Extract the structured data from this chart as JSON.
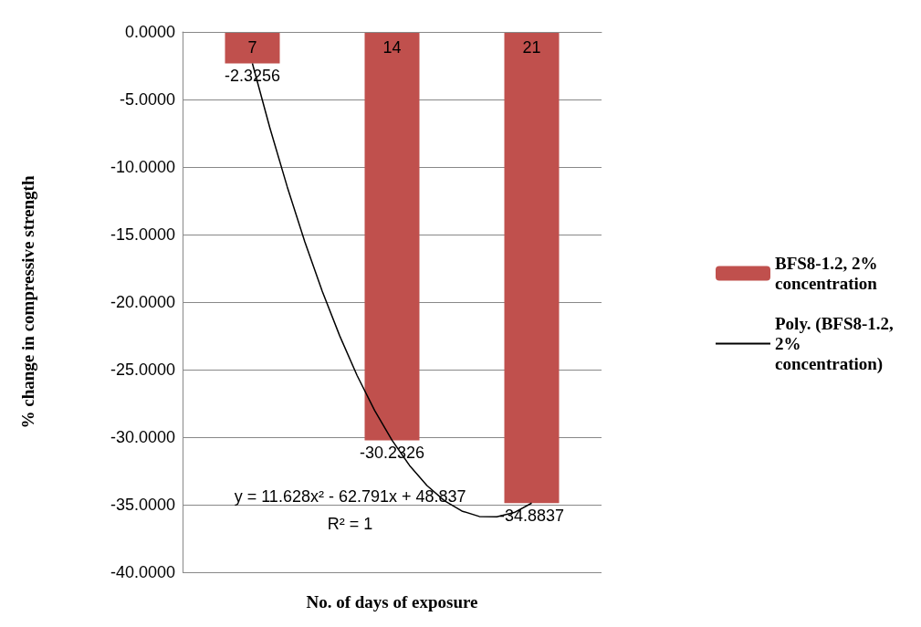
{
  "chart_data": {
    "type": "bar",
    "xlabel": "No. of days of exposure",
    "ylabel": "% change in compressive strength",
    "x": [
      7,
      14,
      21
    ],
    "xlim": [
      3.5,
      24.5
    ],
    "xticks": [
      7,
      14,
      21
    ],
    "ylim": [
      -40,
      0
    ],
    "yticks": [
      {
        "value": 0,
        "label": "0.0000"
      },
      {
        "value": -5,
        "label": "-5.0000"
      },
      {
        "value": -10,
        "label": "-10.0000"
      },
      {
        "value": -15,
        "label": "-15.0000"
      },
      {
        "value": -20,
        "label": "-20.0000"
      },
      {
        "value": -25,
        "label": "-25.0000"
      },
      {
        "value": -30,
        "label": "-30.0000"
      },
      {
        "value": -35,
        "label": "-35.0000"
      },
      {
        "value": -40,
        "label": "-40.0000"
      }
    ],
    "series": [
      {
        "name": "BFS8-1.2, 2% concentration",
        "color": "#c0504d",
        "values": [
          -2.3256,
          -30.2326,
          -34.8837
        ],
        "value_labels": [
          "-2.3256",
          "-30.2326",
          "-34.8837"
        ]
      },
      {
        "name": "Poly. (BFS8-1.2, 2% concentration)",
        "type": "line",
        "color": "#000000",
        "marker": "none",
        "x": [
          7,
          7.875,
          8.75,
          9.625,
          10.5,
          11.375,
          12.25,
          13.125,
          14,
          14.875,
          15.75,
          16.625,
          17.5,
          18.375,
          19.25,
          20.125,
          21
        ],
        "values": [
          -2.33,
          -7.09,
          -11.48,
          -15.52,
          -19.19,
          -22.49,
          -25.44,
          -28.02,
          -30.23,
          -32.09,
          -33.58,
          -34.7,
          -35.47,
          -35.87,
          -35.9,
          -35.58,
          -34.88
        ]
      }
    ],
    "grid": "y",
    "legend": "right",
    "annotations": [
      "y = 11.628x² - 62.791x + 48.837",
      "R² = 1"
    ]
  }
}
